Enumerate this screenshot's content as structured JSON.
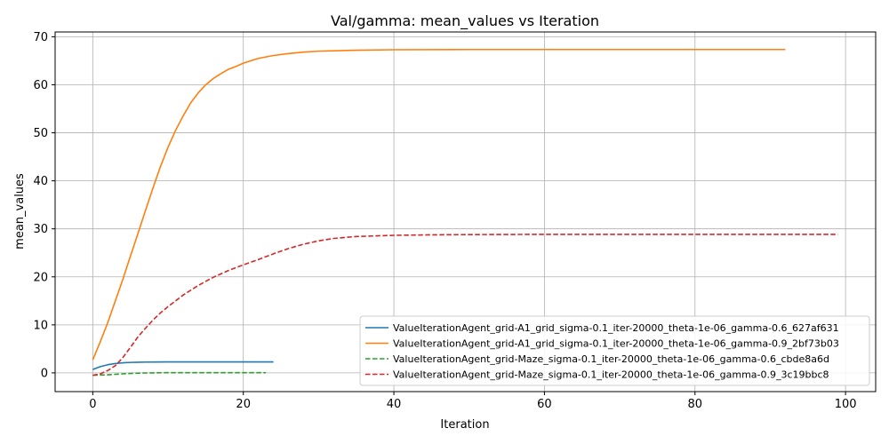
{
  "chart_data": {
    "type": "line",
    "title": "Val/gamma: mean_values vs Iteration",
    "xlabel": "Iteration",
    "ylabel": "mean_values",
    "xlim": [
      -5,
      104
    ],
    "ylim": [
      -3.9,
      71
    ],
    "xticks": [
      0,
      20,
      40,
      60,
      80,
      100
    ],
    "yticks": [
      0,
      10,
      20,
      30,
      40,
      50,
      60,
      70
    ],
    "grid": true,
    "legend_position": "bottom-right",
    "series": [
      {
        "name": "ValueIterationAgent_grid-A1_grid_sigma-0.1_iter-20000_theta-1e-06_gamma-0.6_627af631",
        "color": "#1f77b4",
        "dash": "solid",
        "x": [
          0,
          1,
          2,
          3,
          4,
          5,
          6,
          7,
          8,
          10,
          12,
          14,
          16,
          18,
          20,
          24
        ],
        "y": [
          0.7,
          1.3,
          1.7,
          1.95,
          2.1,
          2.18,
          2.22,
          2.25,
          2.27,
          2.28,
          2.28,
          2.28,
          2.28,
          2.28,
          2.28,
          2.28
        ]
      },
      {
        "name": "ValueIterationAgent_grid-A1_grid_sigma-0.1_iter-20000_theta-1e-06_gamma-0.9_2bf73b03",
        "color": "#ff7f0e",
        "dash": "solid",
        "x": [
          0,
          1,
          2,
          3,
          4,
          5,
          6,
          7,
          8,
          9,
          10,
          11,
          12,
          13,
          14,
          15,
          16,
          17,
          18,
          19,
          20,
          22,
          24,
          26,
          28,
          30,
          35,
          40,
          50,
          60,
          70,
          80,
          92
        ],
        "y": [
          2.7,
          6.5,
          10.5,
          15,
          19.5,
          24.3,
          29,
          33.8,
          38.5,
          43,
          47,
          50.5,
          53.5,
          56.2,
          58.3,
          60,
          61.3,
          62.3,
          63.2,
          63.8,
          64.5,
          65.5,
          66.1,
          66.5,
          66.8,
          67,
          67.2,
          67.3,
          67.35,
          67.35,
          67.35,
          67.35,
          67.35
        ]
      },
      {
        "name": "ValueIterationAgent_grid-Maze_sigma-0.1_iter-20000_theta-1e-06_gamma-0.6_cbde8a6d",
        "color": "#2ca02c",
        "dash": "dashed",
        "x": [
          0,
          2,
          4,
          6,
          8,
          10,
          12,
          16,
          20,
          23
        ],
        "y": [
          -0.5,
          -0.4,
          -0.2,
          -0.05,
          0.0,
          0.05,
          0.05,
          0.05,
          0.05,
          0.05
        ]
      },
      {
        "name": "ValueIterationAgent_grid-Maze_sigma-0.1_iter-20000_theta-1e-06_gamma-0.9_3c19bbc8",
        "color": "#d62728",
        "dash": "dashed",
        "x": [
          0,
          1,
          2,
          3,
          4,
          5,
          6,
          7,
          8,
          9,
          10,
          12,
          14,
          16,
          18,
          20,
          22,
          24,
          26,
          28,
          30,
          32,
          35,
          40,
          45,
          50,
          60,
          70,
          80,
          90,
          99
        ],
        "y": [
          -0.5,
          -0.2,
          0.5,
          1.5,
          3.2,
          5.3,
          7.5,
          9.3,
          11,
          12.5,
          13.8,
          16.2,
          18.2,
          19.9,
          21.3,
          22.5,
          23.6,
          24.8,
          25.9,
          26.8,
          27.5,
          28,
          28.4,
          28.65,
          28.75,
          28.8,
          28.85,
          28.85,
          28.85,
          28.85,
          28.85
        ]
      }
    ]
  }
}
